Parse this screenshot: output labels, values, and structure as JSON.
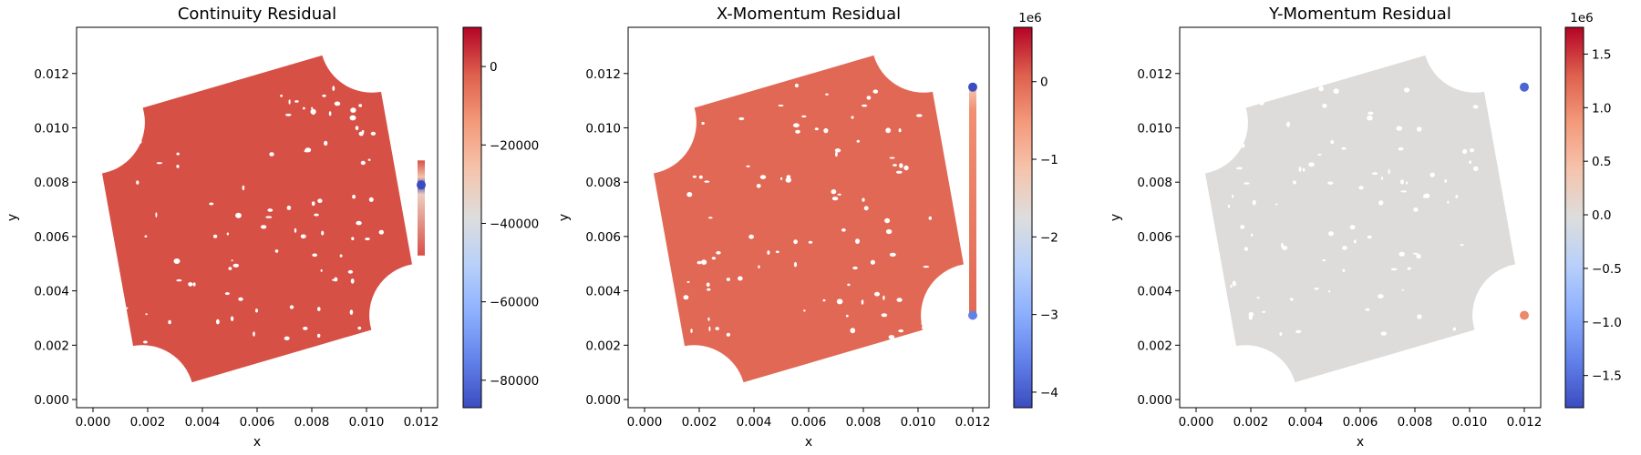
{
  "chart_data": [
    {
      "type": "scatter",
      "title": "Continuity Residual",
      "xlabel": "x",
      "ylabel": "y",
      "xlim": [
        -0.0006,
        0.0126
      ],
      "ylim": [
        -0.0003,
        0.0137
      ],
      "xticks": [
        "0.000",
        "0.002",
        "0.004",
        "0.006",
        "0.008",
        "0.010",
        "0.012"
      ],
      "yticks": [
        "0.000",
        "0.002",
        "0.004",
        "0.006",
        "0.008",
        "0.010",
        "0.012"
      ],
      "colormap": "coolwarm",
      "colorbar": {
        "min": -87000,
        "max": 10000,
        "ticks": [
          "0",
          "−20000",
          "−40000",
          "−60000",
          "−80000"
        ],
        "tick_values": [
          0,
          -20000,
          -40000,
          -60000,
          -80000
        ],
        "multiplier": ""
      },
      "field_value": 0,
      "highlights": [
        {
          "x": 0.012,
          "y": 0.0079,
          "value": -87000
        }
      ],
      "gradient_band": {
        "x": 0.012,
        "y_from": 0.0053,
        "y_to": 0.0088,
        "peak_y": 0.0079,
        "min_value": -87000
      }
    },
    {
      "type": "scatter",
      "title": "X-Momentum Residual",
      "xlabel": "x",
      "ylabel": "y",
      "xlim": [
        -0.0006,
        0.0126
      ],
      "ylim": [
        -0.0003,
        0.0137
      ],
      "xticks": [
        "0.000",
        "0.002",
        "0.004",
        "0.006",
        "0.008",
        "0.010",
        "0.012"
      ],
      "yticks": [
        "0.000",
        "0.002",
        "0.004",
        "0.006",
        "0.008",
        "0.010",
        "0.012"
      ],
      "colormap": "coolwarm",
      "colorbar": {
        "min": -4.2,
        "max": 0.7,
        "ticks": [
          "0",
          "−1",
          "−2",
          "−3",
          "−4"
        ],
        "tick_values": [
          0,
          -1,
          -2,
          -3,
          -4
        ],
        "multiplier": "1e6"
      },
      "field_value": 0,
      "highlights": [
        {
          "x": 0.012,
          "y": 0.0115,
          "value": -4.2
        },
        {
          "x": 0.012,
          "y": 0.0031,
          "value": -3.6
        }
      ],
      "gradient_band": {
        "x": 0.012,
        "y_from": 0.0031,
        "y_to": 0.0115,
        "peak_y": 0.0115,
        "min_value": -1.2
      }
    },
    {
      "type": "scatter",
      "title": "Y-Momentum Residual",
      "xlabel": "x",
      "ylabel": "y",
      "xlim": [
        -0.0006,
        0.0126
      ],
      "ylim": [
        -0.0003,
        0.0137
      ],
      "xticks": [
        "0.000",
        "0.002",
        "0.004",
        "0.006",
        "0.008",
        "0.010",
        "0.012"
      ],
      "yticks": [
        "0.000",
        "0.002",
        "0.004",
        "0.006",
        "0.008",
        "0.010",
        "0.012"
      ],
      "colormap": "coolwarm",
      "colorbar": {
        "min": -1.8,
        "max": 1.75,
        "ticks": [
          "1.5",
          "1.0",
          "0.5",
          "0.0",
          "−0.5",
          "−1.0",
          "−1.5"
        ],
        "tick_values": [
          1.5,
          1.0,
          0.5,
          0.0,
          -0.5,
          -1.0,
          -1.5
        ],
        "multiplier": "1e6"
      },
      "field_value": 0,
      "highlights": [
        {
          "x": 0.012,
          "y": 0.0115,
          "value": -1.6
        },
        {
          "x": 0.012,
          "y": 0.0031,
          "value": 1.0
        }
      ],
      "gradient_band": null
    }
  ]
}
